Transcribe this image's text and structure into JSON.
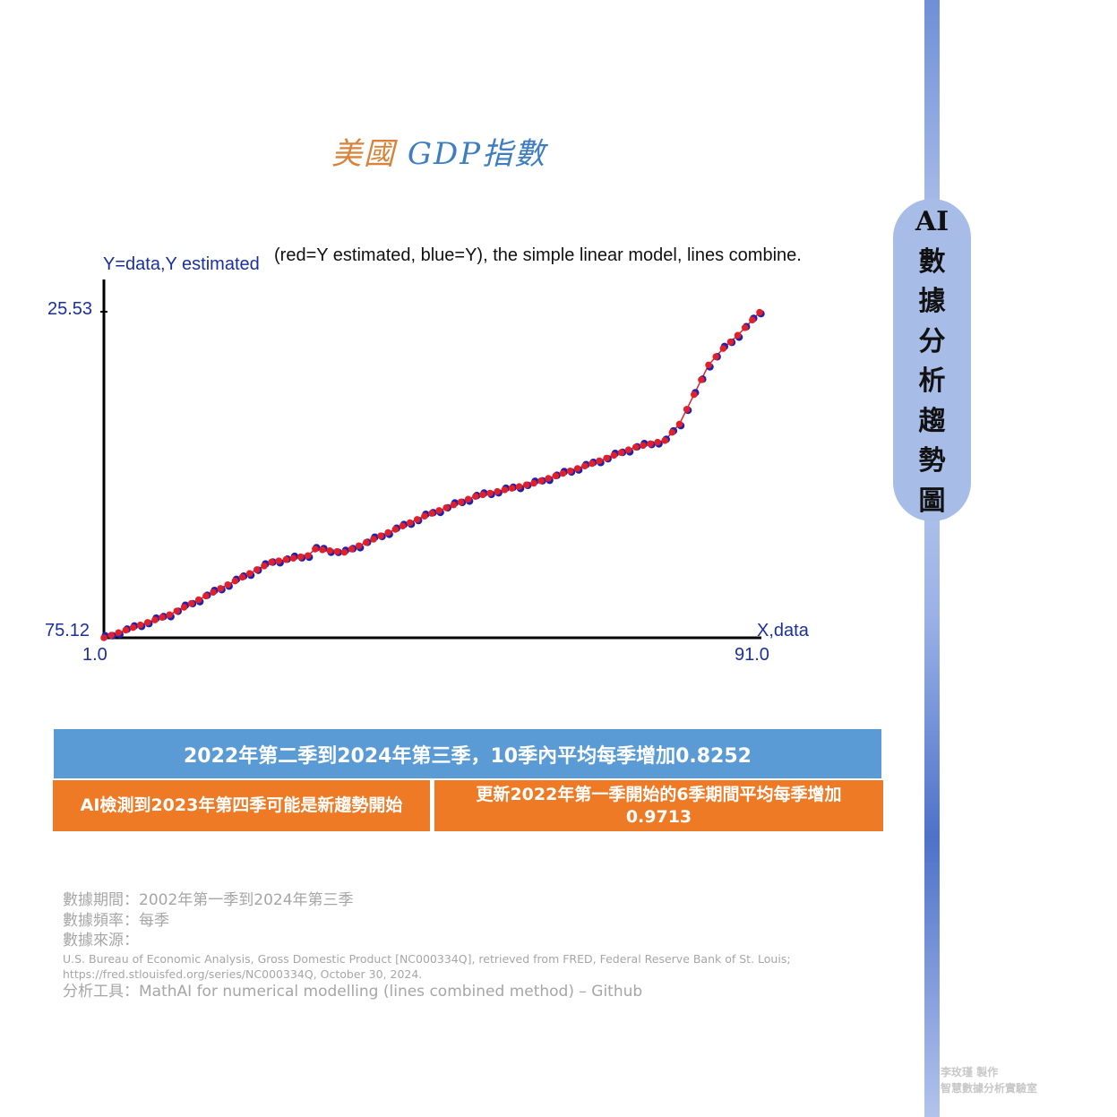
{
  "title": {
    "part1": "美國",
    "part2": "GDP指數"
  },
  "sidebar": {
    "chars": [
      "AI",
      "數",
      "據",
      "分",
      "析",
      "趨",
      "勢",
      "圖"
    ]
  },
  "chart_data": {
    "type": "scatter",
    "header": "(red=Y estimated, blue=Y), the simple linear model, lines combine.",
    "ylabel": "Y=data,Y estimated",
    "xlabel": "X,data",
    "ymax_label": "25.53",
    "ymin_label": "75.12",
    "xmin_label": "1.0",
    "xmax_label": "91.0",
    "xlim": [
      1,
      91
    ],
    "ylim": [
      75.12,
      25.53
    ],
    "colors": {
      "estimated": "#e0202a",
      "actual": "#2020b0",
      "axis": "#000000"
    },
    "anchors": [
      [
        1,
        0.0
      ],
      [
        10,
        0.07
      ],
      [
        17,
        0.15
      ],
      [
        24,
        0.23
      ],
      [
        29,
        0.25
      ],
      [
        30,
        0.27
      ],
      [
        34,
        0.26
      ],
      [
        45,
        0.37
      ],
      [
        52,
        0.43
      ],
      [
        60,
        0.47
      ],
      [
        68,
        0.53
      ],
      [
        74,
        0.58
      ],
      [
        78,
        0.6
      ],
      [
        80,
        0.65
      ],
      [
        84,
        0.83
      ],
      [
        86,
        0.88
      ],
      [
        88,
        0.92
      ],
      [
        91,
        0.99
      ]
    ]
  },
  "banner": {
    "text": "2022年第二季到2024年第三季，10季內平均每季增加0.8252"
  },
  "box_left": {
    "text": "AI檢測到2023年第四季可能是新趨勢開始"
  },
  "box_right": {
    "line1": "更新2022年第一季開始的6季期間平均每季增加",
    "line2": "0.9713"
  },
  "notes": {
    "period": "數據期間：2002年第一季到2024年第三季",
    "frequency": "數據頻率：每季",
    "source_label": "數據來源：",
    "source_line1": "U.S. Bureau of Economic Analysis, Gross Domestic Product [NC000334Q], retrieved from FRED, Federal Reserve Bank of St. Louis;",
    "source_line2": "https://fred.stlouisfed.org/series/NC000334Q, October 30, 2024.",
    "tool": "分析工具：MathAI for numerical modelling (lines combined method) – Github"
  },
  "watermark": {
    "line1": "李玫瑾 製作",
    "line2": "智慧數據分析實驗室"
  }
}
